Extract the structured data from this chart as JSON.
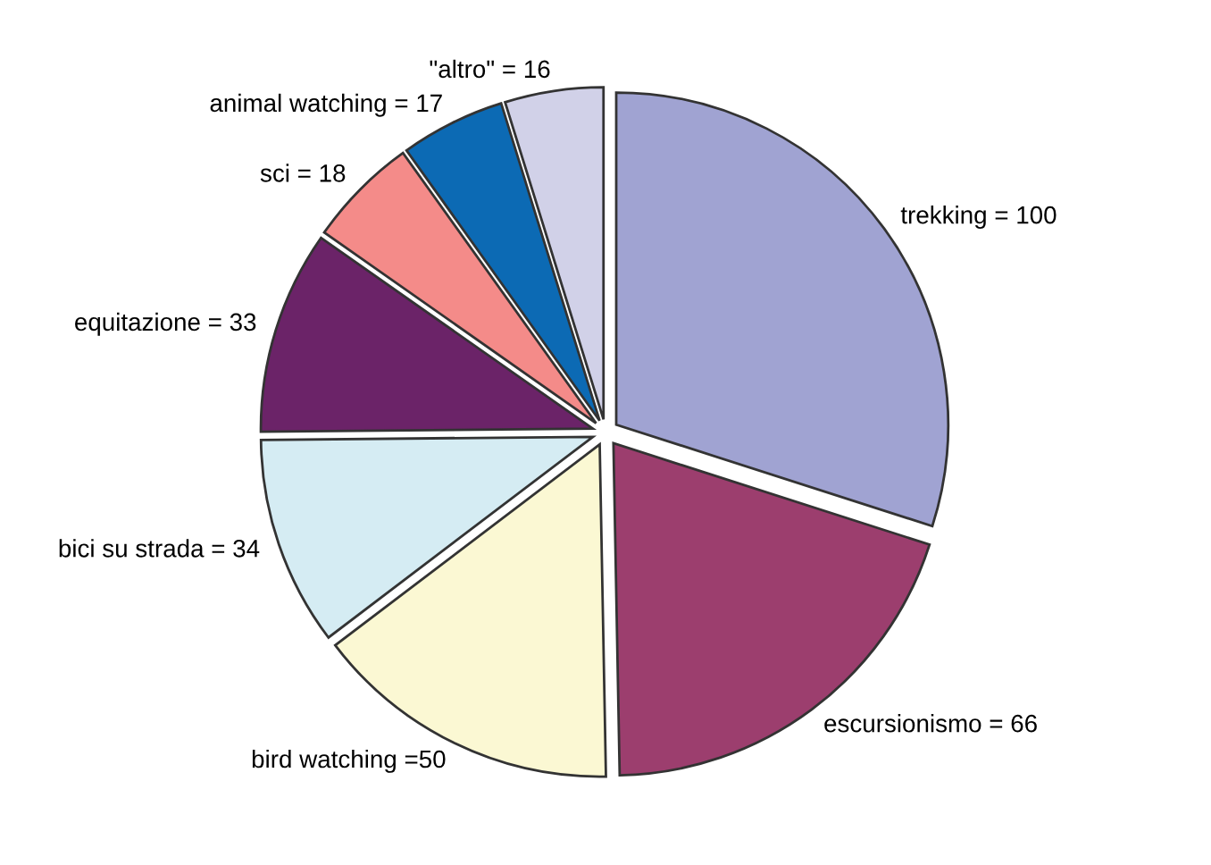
{
  "chart_data": {
    "type": "pie",
    "categories": [
      "trekking = 100",
      "escursionismo = 66",
      "bird watching =50",
      "bici su strada = 34",
      "equitazione = 33",
      "sci = 18",
      "animal watching = 17",
      "\"altro\" = 16"
    ],
    "values": [
      100,
      66,
      50,
      34,
      33,
      18,
      17,
      16
    ],
    "colors": [
      "#a0a3d2",
      "#9c3e6e",
      "#fbf8d3",
      "#d5ecf3",
      "#6b2368",
      "#f48b89",
      "#0c6ab4",
      "#d1d1e8"
    ],
    "legend": false
  }
}
